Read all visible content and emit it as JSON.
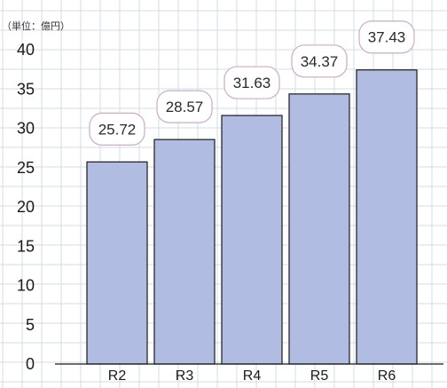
{
  "chart_data": {
    "type": "bar",
    "unit_label": "（単位：億円）",
    "categories": [
      "R2",
      "R3",
      "R4",
      "R5",
      "R6"
    ],
    "values": [
      25.72,
      28.57,
      31.63,
      34.37,
      37.43
    ],
    "value_labels": [
      "25.72",
      "28.57",
      "31.63",
      "34.37",
      "37.43"
    ],
    "yticks": [
      "0",
      "5",
      "10",
      "15",
      "20",
      "25",
      "30",
      "35",
      "40"
    ],
    "ylim": [
      0,
      40
    ],
    "grid": true,
    "colors": {
      "bar_fill": "#b0bce2",
      "bar_stroke": "#1a1a1a",
      "grid": "#d2dce6",
      "label_box_stroke": "#c9aec6",
      "axis": "#1a1a1a"
    }
  }
}
